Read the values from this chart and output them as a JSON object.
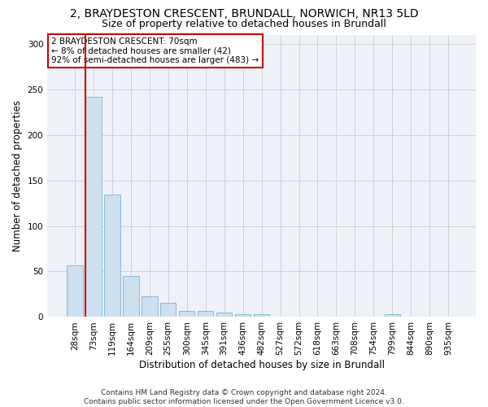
{
  "title": "2, BRAYDESTON CRESCENT, BRUNDALL, NORWICH, NR13 5LD",
  "subtitle": "Size of property relative to detached houses in Brundall",
  "xlabel": "Distribution of detached houses by size in Brundall",
  "ylabel": "Number of detached properties",
  "categories": [
    "28sqm",
    "73sqm",
    "119sqm",
    "164sqm",
    "209sqm",
    "255sqm",
    "300sqm",
    "345sqm",
    "391sqm",
    "436sqm",
    "482sqm",
    "527sqm",
    "572sqm",
    "618sqm",
    "663sqm",
    "708sqm",
    "754sqm",
    "799sqm",
    "844sqm",
    "890sqm",
    "935sqm"
  ],
  "values": [
    57,
    242,
    134,
    45,
    23,
    16,
    7,
    7,
    5,
    3,
    3,
    0,
    0,
    0,
    0,
    0,
    0,
    3,
    0,
    0,
    0
  ],
  "bar_color": "#cce0f0",
  "bar_edgecolor": "#8ab8d8",
  "marker_color": "#cc0000",
  "marker_bar_index": 1,
  "ylim": [
    0,
    310
  ],
  "yticks": [
    0,
    50,
    100,
    150,
    200,
    250,
    300
  ],
  "annotation_lines": [
    "2 BRAYDESTON CRESCENT: 70sqm",
    "← 8% of detached houses are smaller (42)",
    "92% of semi-detached houses are larger (483) →"
  ],
  "footer_line1": "Contains HM Land Registry data © Crown copyright and database right 2024.",
  "footer_line2": "Contains public sector information licensed under the Open Government Licence v3.0.",
  "background_color": "#ffffff",
  "plot_bg_color": "#eef2f8",
  "grid_color": "#cccccc",
  "title_fontsize": 10,
  "subtitle_fontsize": 9,
  "axis_label_fontsize": 8.5,
  "tick_fontsize": 7.5,
  "annotation_fontsize": 7.5,
  "footer_fontsize": 6.5
}
